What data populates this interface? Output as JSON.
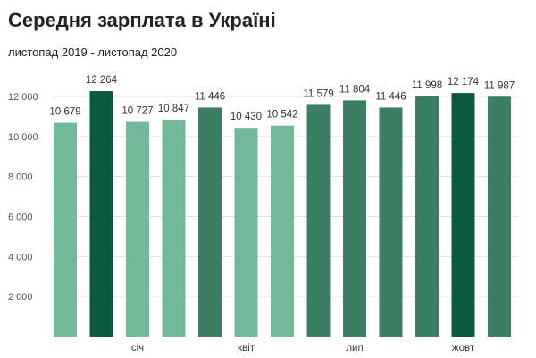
{
  "chart_data": {
    "type": "bar",
    "title": "Середня зарплата в Україні",
    "subtitle": "листопад 2019 - листопад 2020",
    "xlabel": "",
    "ylabel": "",
    "ylim": [
      0,
      13000
    ],
    "y_ticks": [
      2000,
      4000,
      6000,
      8000,
      10000,
      12000
    ],
    "y_tick_labels": [
      "2 000",
      "4 000",
      "6 000",
      "8 000",
      "10 000",
      "12 000"
    ],
    "grid": true,
    "legend": "none",
    "categories": [
      "",
      "",
      "січ",
      "",
      "",
      "квіт",
      "",
      "",
      "лип",
      "",
      "",
      "жовт",
      ""
    ],
    "values": [
      10679,
      12264,
      10727,
      10847,
      11446,
      10430,
      10542,
      11579,
      11804,
      11446,
      11998,
      12174,
      11987
    ],
    "value_labels": [
      "10 679",
      "12 264",
      "10 727",
      "10 847",
      "11 446",
      "10 430",
      "10 542",
      "11 579",
      "11 804",
      "11 446",
      "11 998",
      "12 174",
      "11 987"
    ],
    "bar_shades": [
      "light",
      "dark",
      "light",
      "light",
      "mid",
      "light",
      "light",
      "mid",
      "mid",
      "mid",
      "mid",
      "dark",
      "mid"
    ]
  },
  "colors": {
    "light": "#72b99a",
    "mid": "#3a7f62",
    "dark": "#0b5a3b",
    "grid": "#e3e3e3",
    "text": "#333333"
  }
}
